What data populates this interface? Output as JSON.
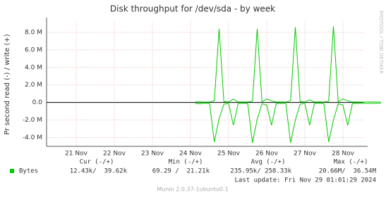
{
  "chart_data": {
    "type": "line",
    "title": "Disk throughput for /dev/sda - by week",
    "y_label": "Pr second read (-) / write (+)",
    "side_text": "RRDTOOL / TOBI OETIKER",
    "categories": [
      null,
      null,
      null,
      null,
      null,
      null,
      "21 Nov",
      null,
      null,
      null,
      null,
      null,
      null,
      null,
      "22 Nov",
      null,
      null,
      null,
      null,
      null,
      null,
      null,
      "23 Nov",
      null,
      null,
      null,
      null,
      null,
      null,
      null,
      "24 Nov",
      null,
      null,
      null,
      null,
      null,
      null,
      null,
      "25 Nov",
      null,
      null,
      null,
      null,
      null,
      null,
      null,
      "26 Nov",
      null,
      null,
      null,
      null,
      null,
      null,
      null,
      "27 Nov",
      null,
      null,
      null,
      null,
      null,
      null,
      null,
      "28 Nov",
      null,
      null,
      null,
      null,
      null,
      null,
      null,
      null
    ],
    "series": [
      {
        "color": "#00cc00",
        "values": [
          null,
          null,
          null,
          null,
          null,
          null,
          null,
          null,
          null,
          null,
          null,
          null,
          null,
          null,
          null,
          null,
          null,
          null,
          null,
          null,
          null,
          null,
          null,
          null,
          null,
          null,
          null,
          null,
          null,
          null,
          null,
          -100000,
          -150000,
          -80000,
          -120000,
          -4500000,
          -1800000,
          -200000,
          -100000,
          -2600000,
          -90000,
          -120000,
          -100000,
          -4600000,
          -1900000,
          -150000,
          -300000,
          -2600000,
          -100000,
          -120000,
          -90000,
          -4600000,
          -2000000,
          -200000,
          -100000,
          -2600000,
          -110000,
          -90000,
          -130000,
          -4500000,
          -2000000,
          -150000,
          -300000,
          -2600000,
          -100000,
          -120000,
          -80000,
          -110000,
          -100000,
          -90000,
          -80000
        ]
      },
      {
        "color": "#00cc00",
        "values": [
          null,
          null,
          null,
          null,
          null,
          null,
          null,
          null,
          null,
          null,
          null,
          null,
          null,
          null,
          null,
          null,
          null,
          null,
          null,
          null,
          null,
          null,
          null,
          null,
          null,
          null,
          null,
          null,
          null,
          null,
          null,
          50000,
          60000,
          40000,
          50000,
          200000,
          8400000,
          100000,
          60000,
          400000,
          50000,
          60000,
          50000,
          150000,
          8400000,
          80000,
          400000,
          200000,
          50000,
          60000,
          40000,
          200000,
          8600000,
          100000,
          50000,
          300000,
          50000,
          60000,
          50000,
          150000,
          8700000,
          80000,
          400000,
          200000,
          50000,
          60000,
          40000,
          50000,
          60000,
          50000,
          40000
        ]
      }
    ],
    "ylim": [
      -5000000,
      9200000
    ],
    "yticks": [
      {
        "value": -4000000,
        "label": "-4.0 M"
      },
      {
        "value": -2000000,
        "label": "-2.0 M"
      },
      {
        "value": 0,
        "label": "0.0"
      },
      {
        "value": 2000000,
        "label": "2.0 M"
      },
      {
        "value": 4000000,
        "label": "4.0 M"
      },
      {
        "value": 6000000,
        "label": "6.0 M"
      },
      {
        "value": 8000000,
        "label": "8.0 M"
      }
    ],
    "grid": true,
    "legend": {
      "headers": [
        "Cur (-/+)",
        "Min (-/+)",
        "Avg (-/+)",
        "Max (-/+)"
      ],
      "rows": [
        {
          "label": "Bytes",
          "color": "#00cc00",
          "cells": [
            "12.43k/  39.62k",
            "69.29 /  21.21k",
            "235.95k/ 258.33k",
            "20.66M/  36.54M"
          ]
        }
      ]
    },
    "last_update": "Last update: Fri Nov 29 01:01:29 2024",
    "footer": "Munin 2.0.37-1ubuntu0.1"
  }
}
